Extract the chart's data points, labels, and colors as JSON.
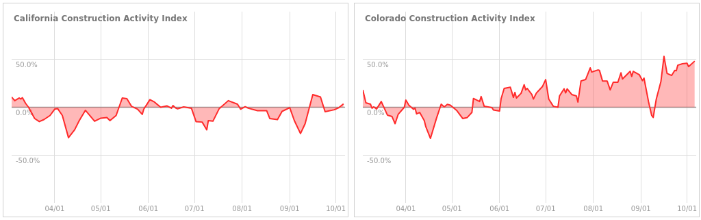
{
  "chart_data": [
    {
      "type": "area",
      "title": "California Construction Activity Index",
      "xlim": [
        "--03-04",
        "--10-07"
      ],
      "ylim": [
        -100,
        100
      ],
      "grid": true,
      "xticks": [
        {
          "value": "--04-01",
          "label": "04/01"
        },
        {
          "value": "--05-01",
          "label": "05/01"
        },
        {
          "value": "--06-01",
          "label": "06/01"
        },
        {
          "value": "--07-01",
          "label": "07/01"
        },
        {
          "value": "--08-01",
          "label": "08/01"
        },
        {
          "value": "--09-01",
          "label": "09/01"
        },
        {
          "value": "--10-01",
          "label": "10/01"
        }
      ],
      "yticks": [
        {
          "value": -50,
          "label": "-50.0%"
        },
        {
          "value": 0,
          "label": "0.0%"
        },
        {
          "value": 50,
          "label": "50.0%"
        }
      ],
      "ref_lines": [
        {
          "axis": "y",
          "value": 0,
          "color": "#999999"
        }
      ],
      "series": [
        {
          "color": "#ff2a2a",
          "x": [
            "--03-04",
            "--03-06",
            "--03-09",
            "--03-10",
            "--03-11",
            "--03-13",
            "--03-15",
            "--03-19",
            "--03-22",
            "--03-25",
            "--03-29",
            "--04-01",
            "--04-03",
            "--04-06",
            "--04-10",
            "--04-14",
            "--04-17",
            "--04-21",
            "--04-27",
            "--05-01",
            "--05-05",
            "--05-07",
            "--05-11",
            "--05-15",
            "--05-18",
            "--05-21",
            "--05-25",
            "--05-28",
            "--05-29",
            "--06-02",
            "--06-05",
            "--06-09",
            "--06-13",
            "--06-16",
            "--06-17",
            "--06-19",
            "--06-20",
            "--06-24",
            "--06-29",
            "--07-02",
            "--07-06",
            "--07-09",
            "--07-10",
            "--07-13",
            "--07-17",
            "--07-23",
            "--07-29",
            "--07-31",
            "--08-03",
            "--08-05",
            "--08-11",
            "--08-17",
            "--08-19",
            "--08-24",
            "--08-27",
            "--09-01",
            "--09-04",
            "--09-08",
            "--09-11",
            "--09-16",
            "--09-21",
            "--09-24",
            "--09-30",
            "--10-03",
            "--10-06"
          ],
          "values": [
            10.7,
            6.9,
            9.7,
            8.6,
            10,
            4.3,
            0,
            -11.8,
            -15,
            -12.9,
            -8.6,
            -2,
            -1.5,
            -8.6,
            -31.8,
            -23.6,
            -14,
            -3.2,
            -14.6,
            -11.4,
            -10.7,
            -14,
            -8.6,
            9.7,
            9,
            1,
            -2,
            -7.5,
            -2,
            8,
            5.4,
            0,
            1.5,
            -1,
            1.7,
            -1,
            -1.7,
            0.4,
            -1,
            -15,
            -15.5,
            -23.6,
            -14,
            -14.6,
            -1.7,
            6.9,
            3.2,
            -2,
            0.6,
            -1,
            -3.6,
            -3.6,
            -11.8,
            -12.9,
            -4.3,
            -0.4,
            -14,
            -27.5,
            -17.2,
            13.3,
            10.7,
            -4.7,
            -2.6,
            -0.4,
            3.6
          ]
        }
      ]
    },
    {
      "type": "area",
      "title": "Colorado Construction Activity Index",
      "xlim": [
        "--03-04",
        "--10-07"
      ],
      "ylim": [
        -100,
        100
      ],
      "grid": true,
      "xticks": [
        {
          "value": "--04-01",
          "label": "04/01"
        },
        {
          "value": "--05-01",
          "label": "05/01"
        },
        {
          "value": "--06-01",
          "label": "06/01"
        },
        {
          "value": "--07-01",
          "label": "07/01"
        },
        {
          "value": "--08-01",
          "label": "08/01"
        },
        {
          "value": "--09-01",
          "label": "09/01"
        },
        {
          "value": "--10-01",
          "label": "10/01"
        }
      ],
      "yticks": [
        {
          "value": -50,
          "label": "-50.0%"
        },
        {
          "value": 0,
          "label": "0.0%"
        },
        {
          "value": 50,
          "label": "50.0%"
        }
      ],
      "ref_lines": [
        {
          "axis": "y",
          "value": 0,
          "color": "#999999"
        }
      ],
      "series": [
        {
          "color": "#ff2a2a",
          "x": [
            "--03-04",
            "--03-06",
            "--03-09",
            "--03-10",
            "--03-11",
            "--03-13",
            "--03-16",
            "--03-20",
            "--03-23",
            "--03-25",
            "--03-27",
            "--03-31",
            "--04-01",
            "--04-03",
            "--04-06",
            "--04-07",
            "--04-08",
            "--04-10",
            "--04-13",
            "--04-14",
            "--04-17",
            "--04-21",
            "--04-24",
            "--04-26",
            "--04-28",
            "--04-30",
            "--05-04",
            "--05-08",
            "--05-11",
            "--05-14",
            "--05-15",
            "--05-19",
            "--05-20",
            "--05-22",
            "--05-27",
            "--05-28",
            "--06-01",
            "--06-02",
            "--06-04",
            "--06-08",
            "--06-10",
            "--06-11",
            "--06-12",
            "--06-15",
            "--06-17",
            "--06-18",
            "--06-19",
            "--06-22",
            "--06-23",
            "--06-25",
            "--06-29",
            "--07-01",
            "--07-03",
            "--07-06",
            "--07-09",
            "--07-10",
            "--07-13",
            "--07-14",
            "--07-15",
            "--07-18",
            "--07-21",
            "--07-22",
            "--07-24",
            "--07-27",
            "--07-30",
            "--07-31",
            "--08-04",
            "--08-05",
            "--08-07",
            "--08-10",
            "--08-12",
            "--08-14",
            "--08-17",
            "--08-19",
            "--08-20",
            "--08-25",
            "--08-26",
            "--08-27",
            "--08-31",
            "--09-02",
            "--09-03",
            "--09-06",
            "--09-08",
            "--09-09",
            "--09-11",
            "--09-14",
            "--09-16",
            "--09-18",
            "--09-21",
            "--09-23",
            "--09-24",
            "--09-25",
            "--09-28",
            "--10-01",
            "--10-02",
            "--10-06"
          ],
          "values": [
            18.2,
            4.7,
            3.2,
            -1,
            0.4,
            -1.7,
            6,
            -8.2,
            -9.7,
            -17.2,
            -7.5,
            0,
            7.5,
            2.1,
            -2.1,
            -1,
            -6.9,
            -5.4,
            -14,
            -20.4,
            -32.6,
            -11.2,
            3.2,
            0.4,
            3,
            2.1,
            -3.2,
            -11.8,
            -10.7,
            -5.4,
            9.2,
            6,
            11.2,
            1,
            -0.4,
            -2.8,
            -3.9,
            9,
            19.7,
            21,
            10.3,
            15.5,
            9.7,
            14.6,
            23.6,
            18.2,
            19.7,
            13.3,
            8.6,
            15,
            21.9,
            29,
            8.6,
            1,
            0,
            11.8,
            19.3,
            15,
            19.3,
            13.3,
            11.8,
            5.4,
            27.5,
            29,
            41.2,
            36.9,
            39,
            38.6,
            27.5,
            27.5,
            18.2,
            26.2,
            26.2,
            36,
            29.6,
            37.6,
            32.2,
            37.6,
            33.9,
            27.9,
            30.5,
            5.4,
            -8.6,
            -10.7,
            8.6,
            26.8,
            53.2,
            35.4,
            33.3,
            38.6,
            38.2,
            44,
            45.5,
            46.1,
            42.5,
            48.3
          ]
        }
      ]
    }
  ]
}
